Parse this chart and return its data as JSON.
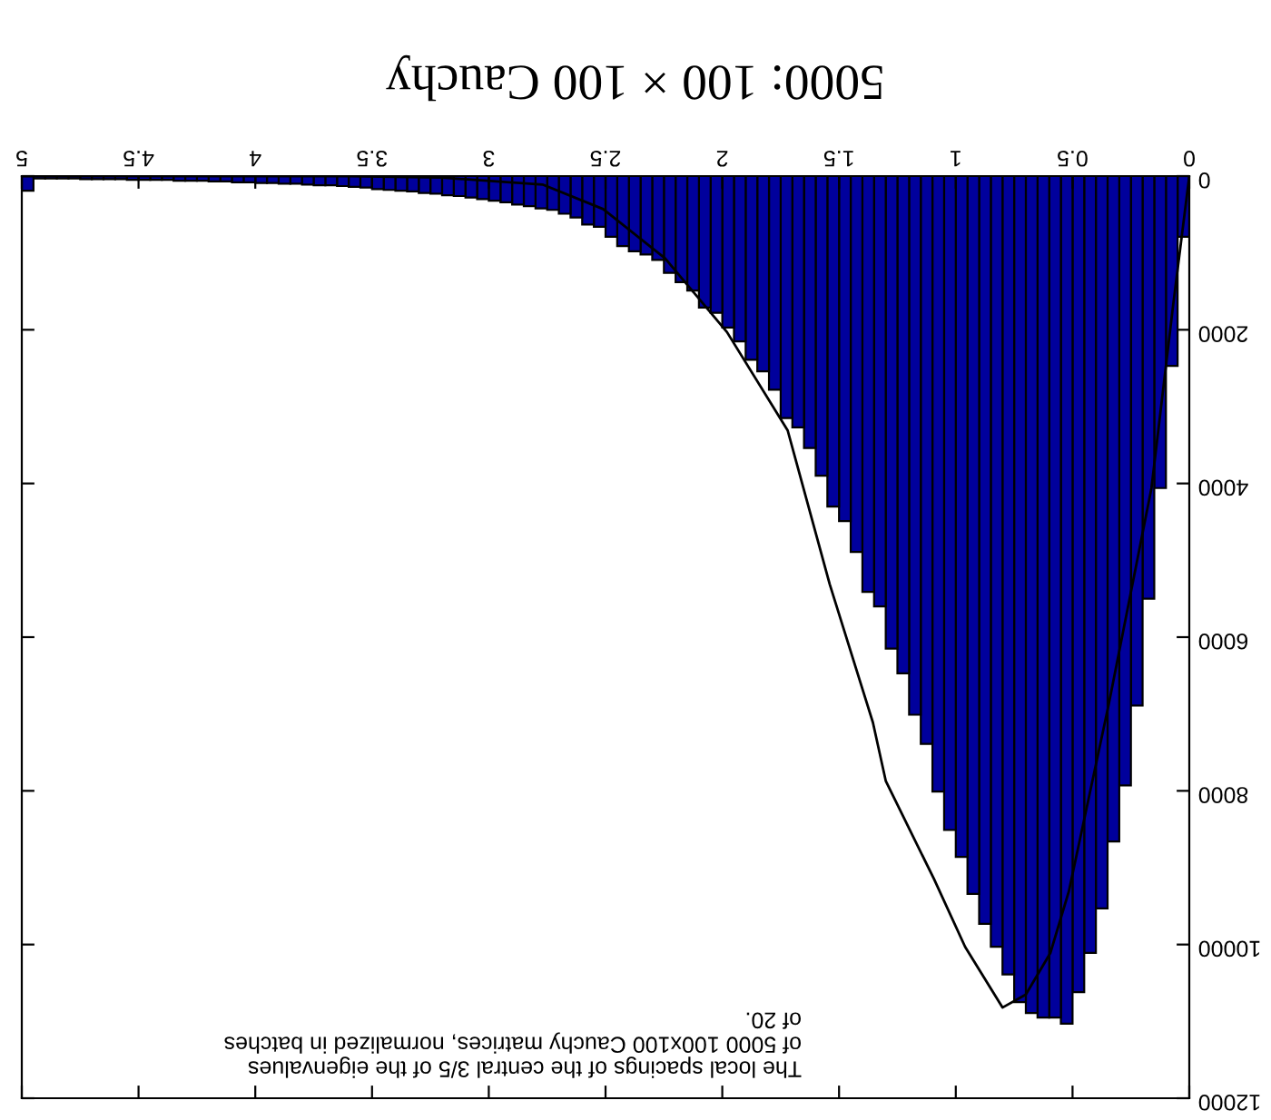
{
  "chart_data": {
    "type": "histogram",
    "title": "5000: 100 × 100 Cauchy",
    "annotations": [
      "The local spacings of the central 3/5 of the eigenvalues\nof 5000 100x100 Cauchy matrices, normalized in batches\nof 20."
    ],
    "bins": [
      0,
      0.05,
      0.1,
      0.15,
      0.2,
      0.25,
      0.3,
      0.35,
      0.4,
      0.45,
      0.5,
      0.55,
      0.6,
      0.65,
      0.7,
      0.75,
      0.8,
      0.85,
      0.9,
      0.95,
      1,
      1.05,
      1.1,
      1.15,
      1.2,
      1.25,
      1.3,
      1.35,
      1.4,
      1.45,
      1.5,
      1.55,
      1.6,
      1.65,
      1.7,
      1.75,
      1.8,
      1.85,
      1.9,
      1.95,
      2,
      2.05,
      2.1,
      2.15,
      2.2,
      2.25,
      2.3,
      2.35,
      2.4,
      2.45,
      2.5,
      2.55,
      2.6,
      2.65,
      2.7,
      2.75,
      2.8,
      2.85,
      2.9,
      2.95,
      3,
      3.05,
      3.1,
      3.15,
      3.2,
      3.25,
      3.3,
      3.35,
      3.4,
      3.45,
      3.5,
      3.55,
      3.6,
      3.65,
      3.7,
      3.75,
      3.8,
      3.85,
      3.9,
      3.95,
      4,
      4.05,
      4.1,
      4.15,
      4.2,
      4.25,
      4.3,
      4.35,
      4.4,
      4.45,
      4.5,
      4.55,
      4.6,
      4.65,
      4.7,
      4.75,
      4.8,
      4.85,
      4.9,
      4.95,
      5
    ],
    "values": [
      790,
      2470,
      4060,
      5500,
      6890,
      7930,
      8660,
      9530,
      10110,
      10620,
      11030,
      10950,
      10950,
      10890,
      10750,
      10390,
      10030,
      9730,
      9340,
      8860,
      8510,
      8010,
      7390,
      7010,
      6470,
      6150,
      5600,
      5410,
      4890,
      4490,
      4300,
      3900,
      3540,
      3270,
      3150,
      2780,
      2540,
      2390,
      2150,
      1970,
      1780,
      1710,
      1490,
      1380,
      1260,
      1090,
      1020,
      980,
      910,
      790,
      660,
      630,
      540,
      490,
      440,
      420,
      390,
      370,
      340,
      320,
      300,
      280,
      260,
      250,
      230,
      220,
      200,
      190,
      180,
      170,
      150,
      140,
      130,
      120,
      120,
      110,
      100,
      100,
      90,
      90,
      80,
      80,
      70,
      70,
      60,
      60,
      60,
      50,
      50,
      50,
      50,
      40,
      40,
      40,
      40,
      30,
      30,
      30,
      30,
      190
    ],
    "color": "#00009c",
    "series": [
      {
        "type": "line",
        "color": "#000000",
        "x": [
          0,
          0.07,
          0.162,
          0.346,
          0.516,
          0.595,
          0.7,
          0.8,
          0.96,
          1.093,
          1.3,
          1.355,
          1.54,
          1.72,
          1.98,
          2.245,
          2.51,
          2.77,
          3.2,
          3.6,
          5
        ],
        "values": [
          0,
          1700,
          4060,
          6890,
          9310,
          10110,
          10650,
          10820,
          10030,
          9150,
          7870,
          7110,
          5310,
          3310,
          2030,
          1070,
          430,
          110,
          20,
          0,
          0
        ]
      }
    ],
    "xlim": [
      5,
      0
    ],
    "ylim": [
      12000,
      0
    ],
    "xticks": [
      0,
      0.5,
      1,
      1.5,
      2,
      2.5,
      3,
      3.5,
      4,
      4.5,
      5
    ],
    "yticks": [
      0,
      2000,
      4000,
      6000,
      8000,
      10000,
      12000
    ],
    "grid": false
  }
}
